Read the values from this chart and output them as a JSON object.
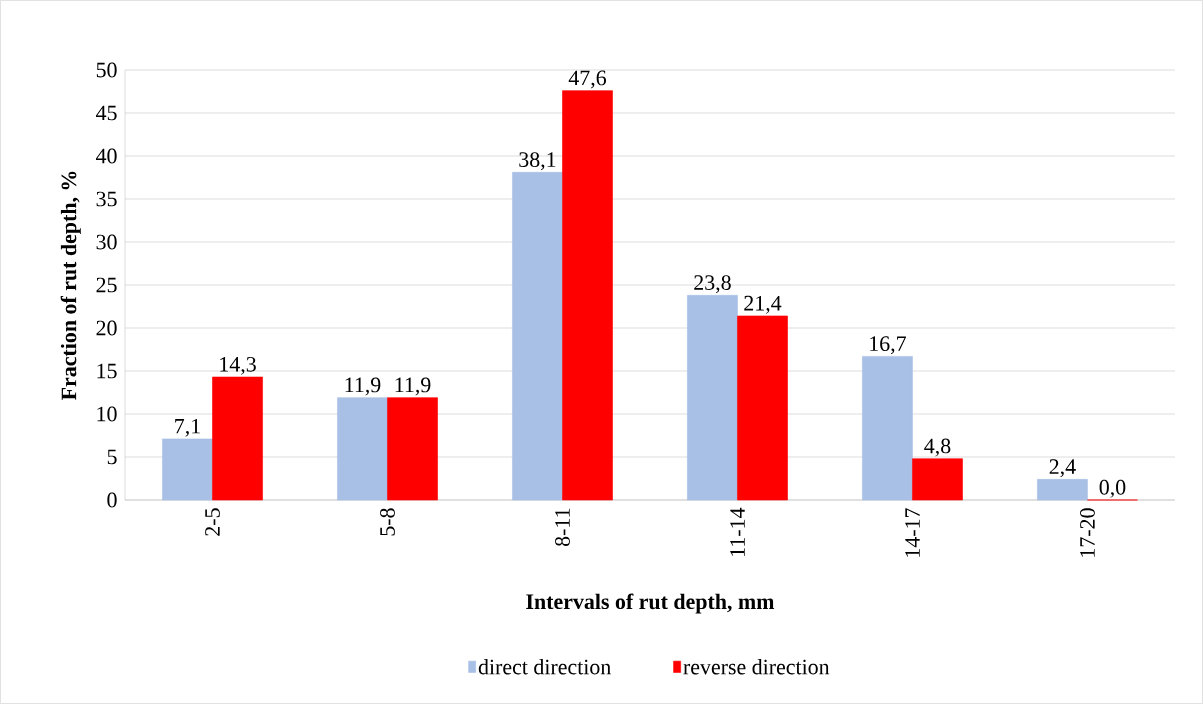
{
  "chart_data": {
    "type": "bar",
    "xlabel": "Intervals of rut depth, mm",
    "ylabel": "Fraction of rut depth, %",
    "categories": [
      "2-5",
      "5-8",
      "8-11",
      "11-14",
      "14-17",
      "17-20"
    ],
    "series": [
      {
        "name": "direct direction",
        "color": "#a9c0e6",
        "values": [
          7.1,
          11.9,
          38.1,
          23.8,
          16.7,
          2.4
        ],
        "value_labels": [
          "7,1",
          "11,9",
          "38,1",
          "23,8",
          "16,7",
          "2,4"
        ]
      },
      {
        "name": "reverse direction",
        "color": "#ff0000",
        "values": [
          14.3,
          11.9,
          47.6,
          21.4,
          4.8,
          0.0
        ],
        "value_labels": [
          "14,3",
          "11,9",
          "47,6",
          "21,4",
          "4,8",
          "0,0"
        ]
      }
    ],
    "ylim": [
      0,
      50
    ],
    "yticks": [
      0,
      5,
      10,
      15,
      20,
      25,
      30,
      35,
      40,
      45,
      50
    ],
    "grid": "y",
    "legend": "bottom"
  }
}
